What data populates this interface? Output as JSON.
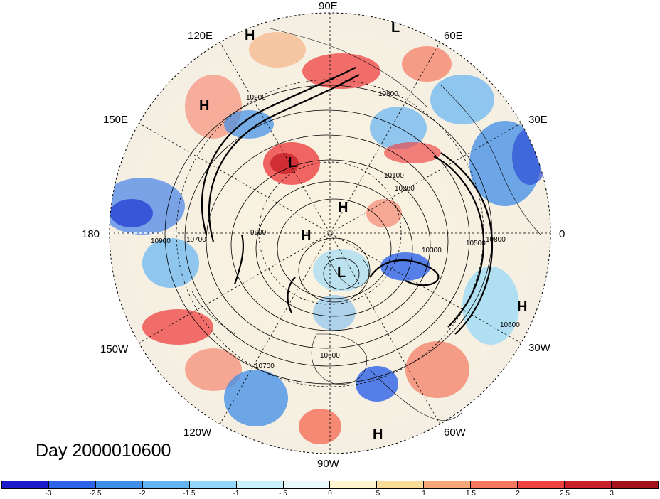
{
  "map": {
    "projection": "north polar stereographic",
    "longitude_labels": [
      "90E",
      "60E",
      "30E",
      "0",
      "30W",
      "60W",
      "90W",
      "120W",
      "150W",
      "180",
      "150E",
      "120E"
    ],
    "pressure_centers": [
      "H",
      "L",
      "H",
      "L",
      "H",
      "H",
      "L",
      "H",
      "H"
    ],
    "contour_labels": [
      "10900",
      "10800",
      "10700",
      "10600",
      "10500",
      "10100",
      "9800",
      "10200",
      "10300",
      "10800",
      "10900",
      "10700",
      "10600"
    ]
  },
  "title": {
    "text": "Day 2000010600"
  },
  "colorbar": {
    "labels": [
      "-3",
      "-2.5",
      "-2",
      "-1.5",
      "-1",
      "-.5",
      "0",
      ".5",
      "1",
      "1.5",
      "2",
      "2.5",
      "3"
    ],
    "colors": [
      "#1a1aca",
      "#2d63e8",
      "#3f8ee8",
      "#64b3f3",
      "#93d7fa",
      "#c9f1fb",
      "#eaf9fb",
      "#fff6cf",
      "#fbdd9a",
      "#f7a878",
      "#f57760",
      "#ee4141",
      "#c7202a",
      "#a4121e"
    ]
  }
}
